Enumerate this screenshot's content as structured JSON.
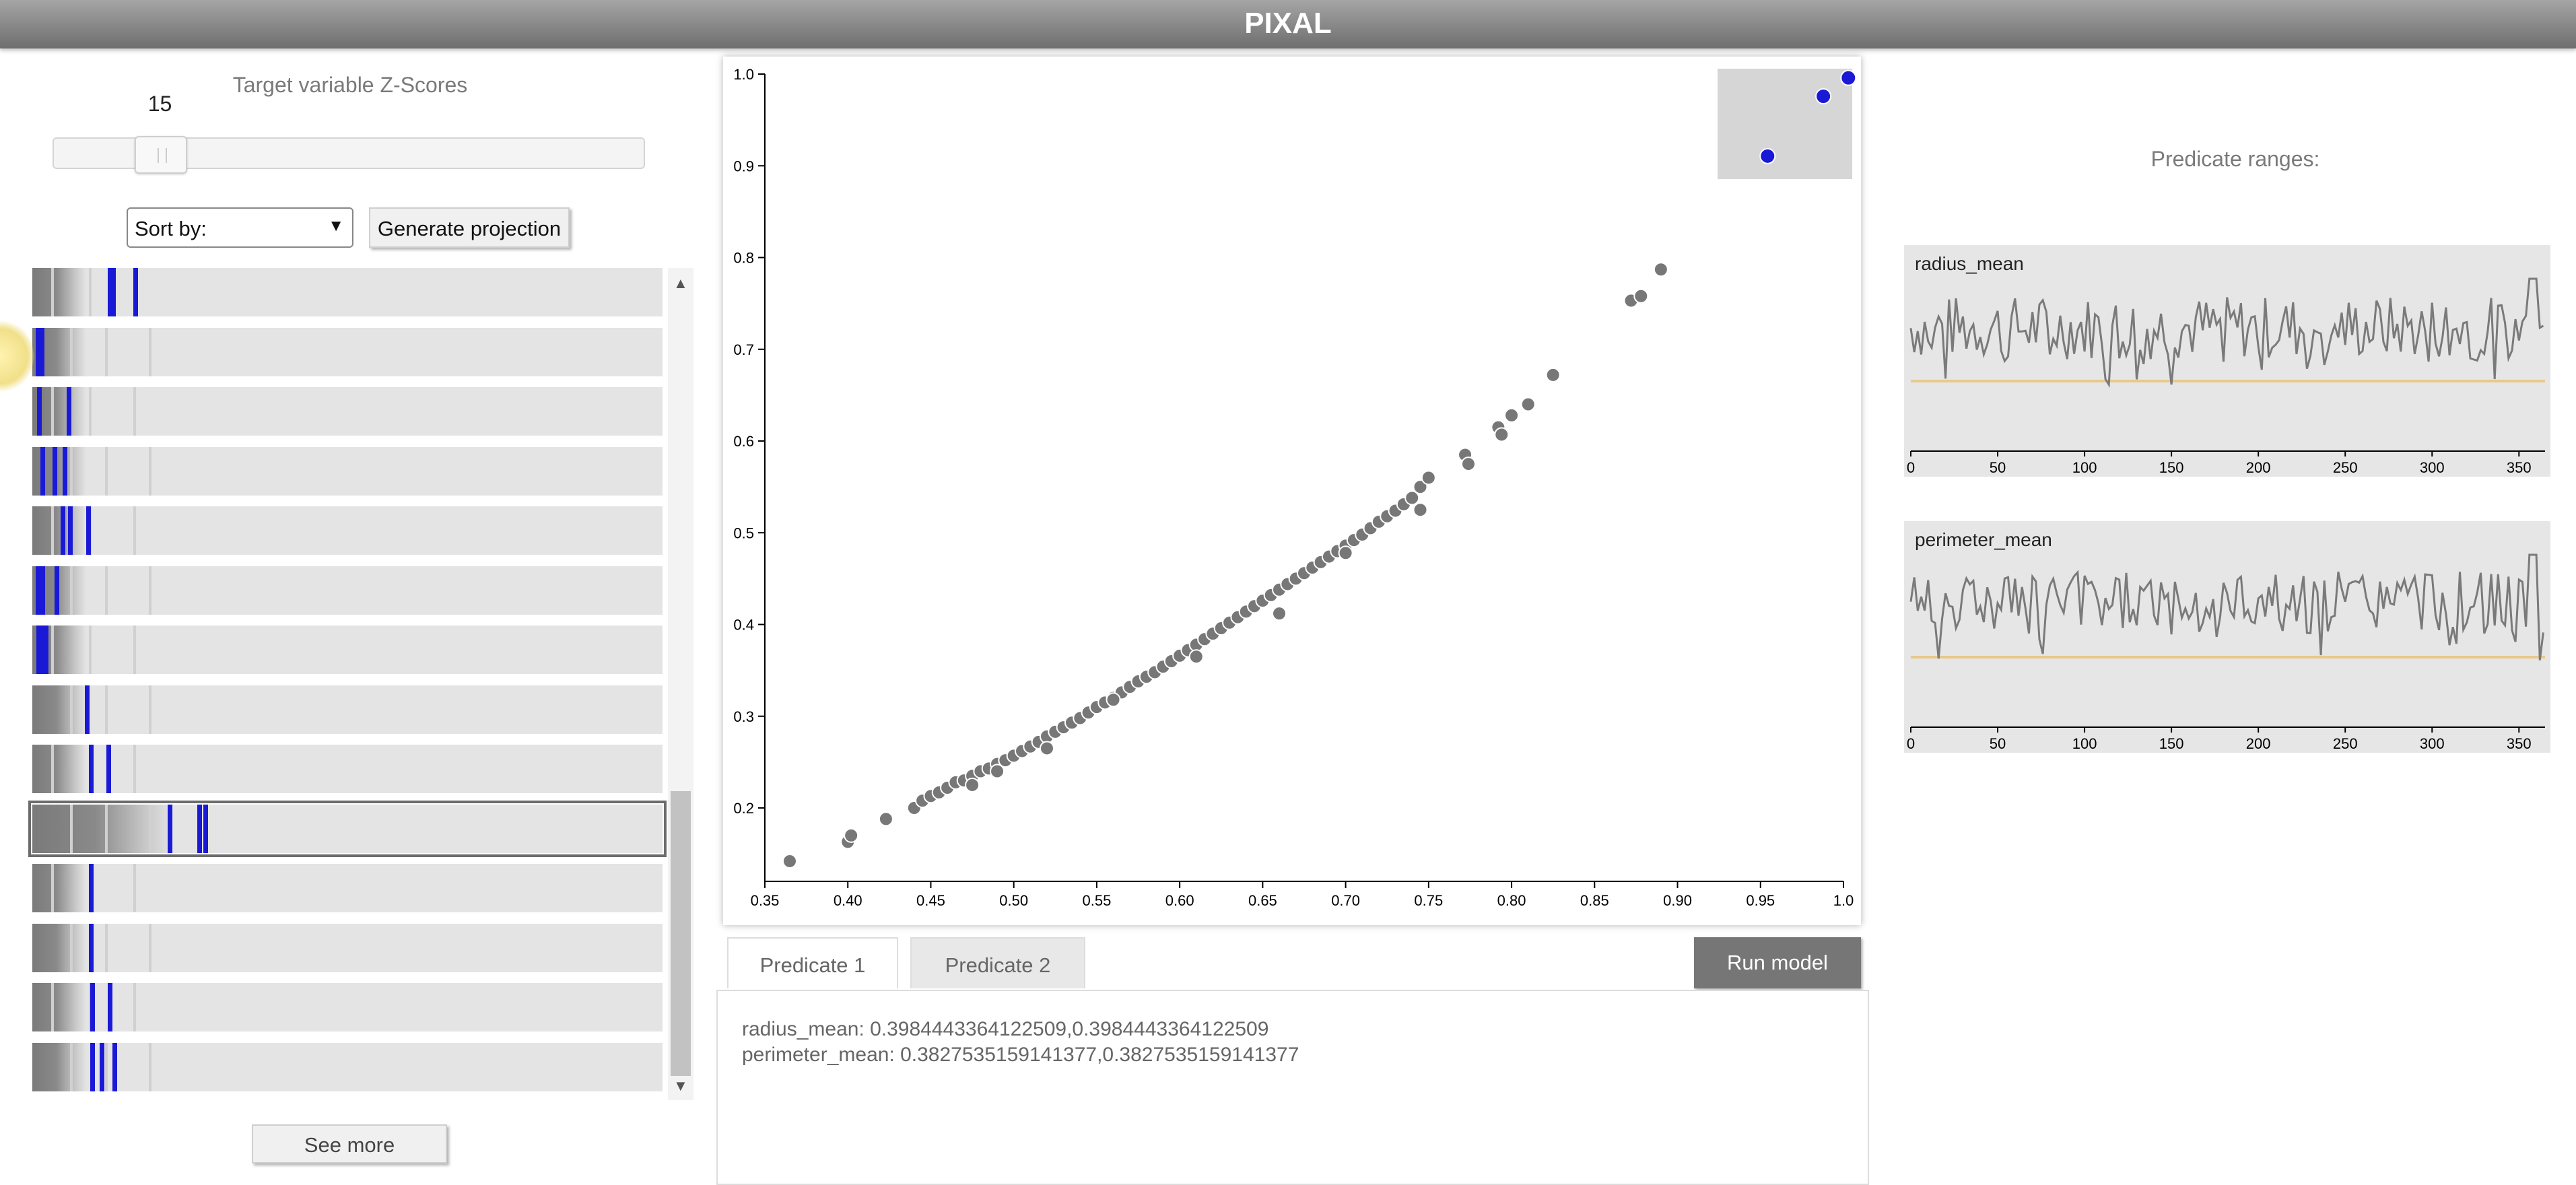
{
  "app": {
    "title": "PIXAL"
  },
  "left_panel": {
    "zscore_label": "Target variable Z-Scores",
    "slider_value": "15",
    "sort_label": "Sort by:",
    "sort_arrow": "▼",
    "generate_label": "Generate projection",
    "see_more_label": "See more",
    "selected_strip_index": 9,
    "strips": [
      {
        "blue": [
          0.12,
          0.125,
          0.16
        ]
      },
      {
        "blue": [
          0.005,
          0.012
        ]
      },
      {
        "blue": [
          0.008,
          0.055
        ]
      },
      {
        "blue": [
          0.013,
          0.032,
          0.048
        ]
      },
      {
        "blue": [
          0.045,
          0.057,
          0.085
        ]
      },
      {
        "blue": [
          0.005,
          0.013,
          0.035
        ]
      },
      {
        "blue": [
          0.006,
          0.012,
          0.018
        ]
      },
      {
        "blue": [
          0.083
        ]
      },
      {
        "blue": [
          0.09,
          0.118
        ]
      },
      {
        "blue": [
          0.215,
          0.262,
          0.271
        ]
      },
      {
        "blue": [
          0.09
        ]
      },
      {
        "blue": [
          0.09
        ]
      },
      {
        "blue": [
          0.092,
          0.12
        ]
      },
      {
        "blue": [
          0.092,
          0.107,
          0.127
        ]
      }
    ]
  },
  "chart_data": {
    "type": "scatter",
    "xlim": [
      0.35,
      1.0
    ],
    "ylim": [
      0.12,
      1.0
    ],
    "x_ticks": [
      "0.35",
      "0.40",
      "0.45",
      "0.50",
      "0.55",
      "0.60",
      "0.65",
      "0.70",
      "0.75",
      "0.80",
      "0.85",
      "0.90",
      "0.95",
      "1.0"
    ],
    "y_ticks": [
      "0.2",
      "0.3",
      "0.4",
      "0.5",
      "0.6",
      "0.7",
      "0.8",
      "0.9",
      "1.0"
    ],
    "point_color": "#777777",
    "highlight_color": "#1a1ad6",
    "points_x": [
      0.365,
      0.4,
      0.402,
      0.423,
      0.44,
      0.445,
      0.45,
      0.455,
      0.46,
      0.465,
      0.47,
      0.475,
      0.48,
      0.485,
      0.49,
      0.495,
      0.5,
      0.505,
      0.51,
      0.515,
      0.52,
      0.525,
      0.53,
      0.535,
      0.54,
      0.545,
      0.55,
      0.555,
      0.56,
      0.565,
      0.57,
      0.575,
      0.58,
      0.585,
      0.59,
      0.595,
      0.6,
      0.605,
      0.61,
      0.615,
      0.62,
      0.625,
      0.63,
      0.635,
      0.64,
      0.645,
      0.65,
      0.655,
      0.66,
      0.665,
      0.67,
      0.675,
      0.68,
      0.685,
      0.69,
      0.695,
      0.7,
      0.705,
      0.71,
      0.715,
      0.72,
      0.725,
      0.73,
      0.735,
      0.74,
      0.745,
      0.75,
      0.772,
      0.774,
      0.792,
      0.794,
      0.8,
      0.81,
      0.825,
      0.872,
      0.878,
      0.89,
      0.475,
      0.49,
      0.52,
      0.56,
      0.61,
      0.66,
      0.7,
      0.745
    ],
    "points_y": [
      0.142,
      0.163,
      0.17,
      0.188,
      0.2,
      0.208,
      0.213,
      0.217,
      0.222,
      0.228,
      0.23,
      0.235,
      0.24,
      0.243,
      0.248,
      0.252,
      0.257,
      0.262,
      0.267,
      0.272,
      0.278,
      0.283,
      0.288,
      0.293,
      0.298,
      0.304,
      0.31,
      0.315,
      0.32,
      0.326,
      0.332,
      0.338,
      0.343,
      0.348,
      0.354,
      0.36,
      0.366,
      0.372,
      0.378,
      0.384,
      0.39,
      0.396,
      0.402,
      0.408,
      0.414,
      0.42,
      0.426,
      0.432,
      0.438,
      0.444,
      0.45,
      0.456,
      0.462,
      0.468,
      0.474,
      0.48,
      0.486,
      0.492,
      0.498,
      0.505,
      0.512,
      0.518,
      0.524,
      0.531,
      0.538,
      0.55,
      0.56,
      0.585,
      0.575,
      0.615,
      0.607,
      0.628,
      0.64,
      0.672,
      0.753,
      0.758,
      0.787,
      0.225,
      0.24,
      0.265,
      0.318,
      0.365,
      0.412,
      0.478,
      0.525
    ],
    "highlight_x": [
      0.956,
      0.985,
      0.998
    ],
    "highlight_y": [
      0.905,
      0.97,
      0.99
    ]
  },
  "tabs": {
    "predicate1": "Predicate 1",
    "predicate2": "Predicate 2"
  },
  "run_label": "Run model",
  "predicates": {
    "line1": "radius_mean: 0.3984443364122509,0.3984443364122509",
    "line2": "perimeter_mean: 0.3827535159141377,0.3827535159141377"
  },
  "right_panel": {
    "title": "Predicate ranges:",
    "charts": [
      {
        "label": "radius_mean",
        "x_ticks": [
          "0",
          "50",
          "100",
          "150",
          "200",
          "250",
          "300",
          "350"
        ],
        "threshold_color": "#e8c98a"
      },
      {
        "label": "perimeter_mean",
        "x_ticks": [
          "0",
          "50",
          "100",
          "150",
          "200",
          "250",
          "300",
          "350"
        ],
        "threshold_color": "#e8c98a"
      }
    ]
  }
}
